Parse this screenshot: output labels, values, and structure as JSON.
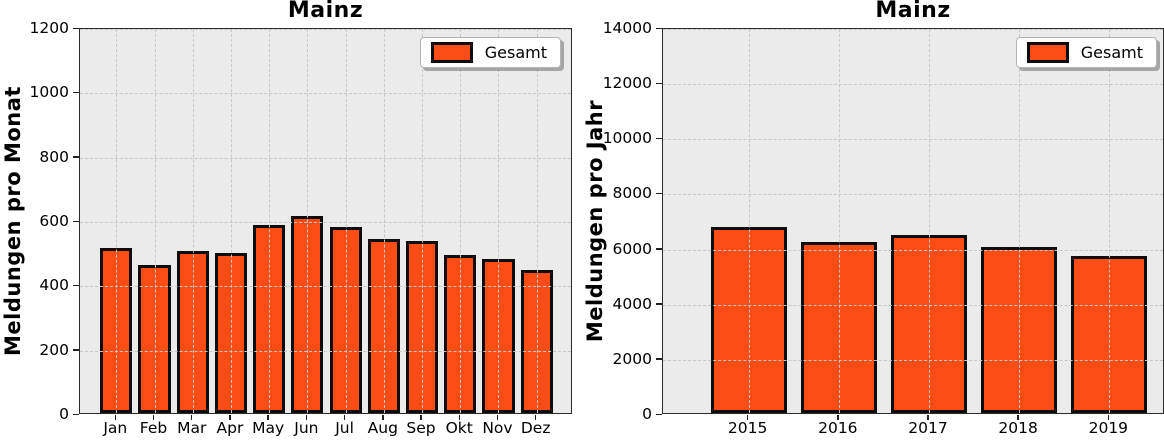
{
  "colors": {
    "bar_fill": "#FA4D15",
    "bar_edge": "#0d0d0d",
    "plot_bg": "#EBEBEB",
    "grid": "#C6C6C6",
    "tick": "#222222"
  },
  "chart_data": [
    {
      "type": "bar",
      "title": "Mainz",
      "ylabel": "Meldungen pro Monat",
      "xlabel": "",
      "categories": [
        "Jan",
        "Feb",
        "Mar",
        "Apr",
        "May",
        "Jun",
        "Jul",
        "Aug",
        "Sep",
        "Okt",
        "Nov",
        "Dez"
      ],
      "values": [
        512,
        460,
        503,
        499,
        586,
        613,
        577,
        542,
        535,
        491,
        480,
        444
      ],
      "ylim": [
        0,
        1200
      ],
      "yticks": [
        0,
        200,
        400,
        600,
        800,
        1000,
        1200
      ],
      "grid": true,
      "legend_label": "Gesamt",
      "legend_position": "upper right"
    },
    {
      "type": "bar",
      "title": "Mainz",
      "ylabel": "Meldungen pro Jahr",
      "xlabel": "",
      "categories": [
        "2015",
        "2016",
        "2017",
        "2018",
        "2019"
      ],
      "values": [
        6760,
        6220,
        6440,
        6030,
        5710
      ],
      "ylim": [
        0,
        14000
      ],
      "yticks": [
        0,
        2000,
        4000,
        6000,
        8000,
        10000,
        12000,
        14000
      ],
      "grid": true,
      "legend_label": "Gesamt",
      "legend_position": "upper right"
    }
  ]
}
